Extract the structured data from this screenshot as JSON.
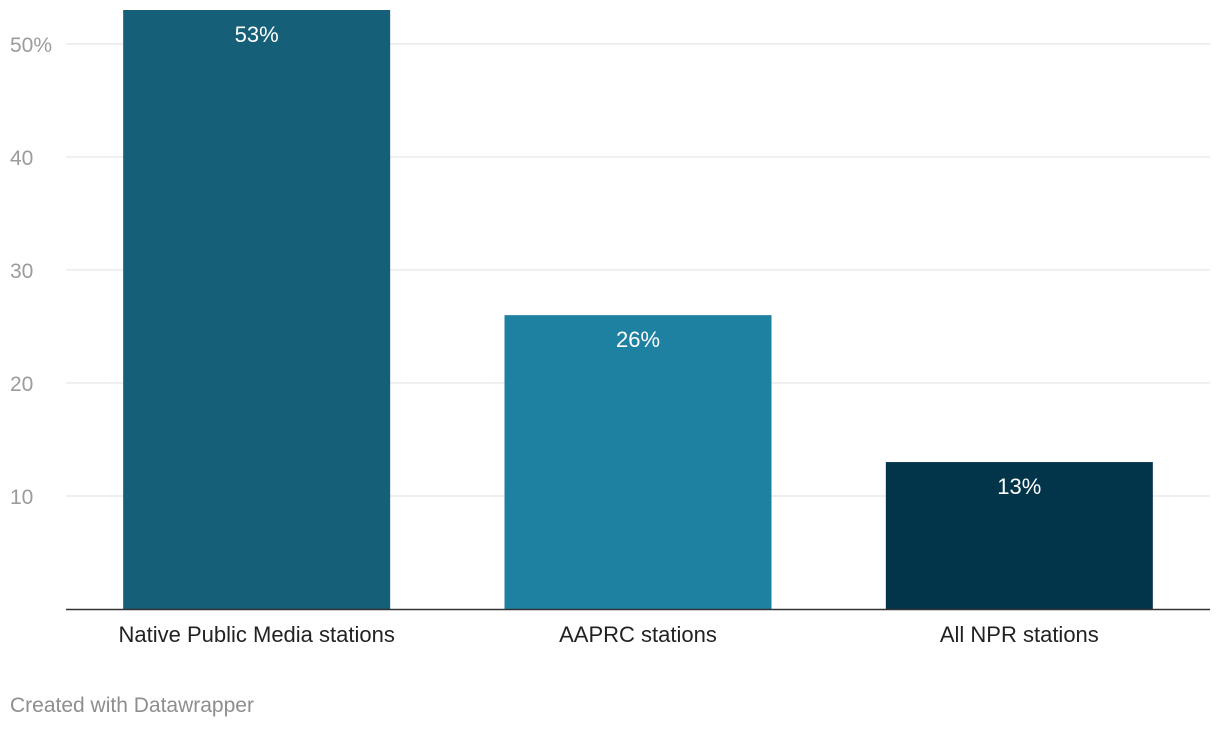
{
  "chart_data": {
    "type": "bar",
    "categories": [
      "Native Public Media stations",
      "AAPRC stations",
      "All NPR stations"
    ],
    "values": [
      53,
      26,
      13
    ],
    "value_labels": [
      "53%",
      "26%",
      "13%"
    ],
    "ylim": [
      0,
      53
    ],
    "y_ticks": [
      {
        "value": 10,
        "label": "10"
      },
      {
        "value": 20,
        "label": "20"
      },
      {
        "value": 30,
        "label": "30"
      },
      {
        "value": 40,
        "label": "40"
      },
      {
        "value": 50,
        "label": "50%"
      }
    ],
    "grid": true,
    "colors": [
      "#155f78",
      "#1e81a1",
      "#02344a"
    ]
  },
  "footer": {
    "credit": "Created with Datawrapper"
  },
  "colors": {
    "gridline": "#e5e5e5",
    "axis": "#333333",
    "tick_label": "#9b9b9b",
    "category_label": "#222222",
    "value_label": "#ffffff"
  }
}
